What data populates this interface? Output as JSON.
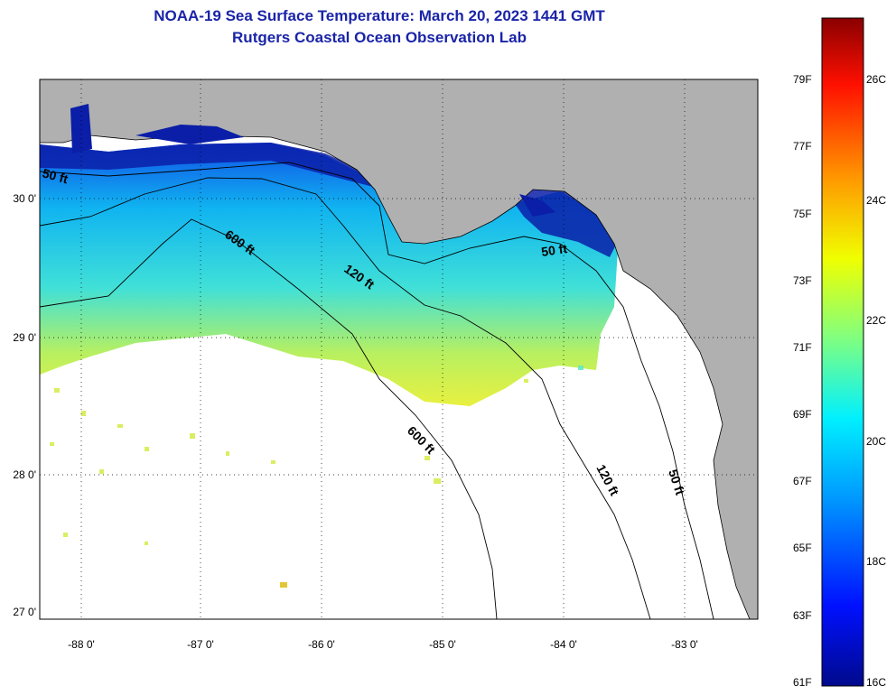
{
  "title_line1": "NOAA-19 Sea Surface Temperature:  March 20, 2023 1441 GMT",
  "title_line2": "Rutgers Coastal Ocean Observation Lab",
  "map": {
    "lat_labels": [
      "30 0'",
      "29 0'",
      "28 0'",
      "27 0'"
    ],
    "lon_labels": [
      "-88 0'",
      "-87 0'",
      "-86 0'",
      "-85 0'",
      "-84 0'",
      "-83 0'"
    ],
    "contour_labels": [
      "50 ft",
      "600 ft",
      "120 ft",
      "50 ft",
      "600 ft",
      "120 ft",
      "50 ft"
    ],
    "colors": {
      "land": "#b0b0b0",
      "ocean_nodata": "#ffffff",
      "contour": "#000000"
    }
  },
  "colorbar": {
    "fahrenheit_labels": [
      "79F",
      "77F",
      "75F",
      "73F",
      "71F",
      "69F",
      "67F",
      "65F",
      "63F",
      "61F"
    ],
    "celsius_labels": [
      "26C",
      "24C",
      "22C",
      "20C",
      "18C",
      "16C"
    ],
    "stops": [
      "#000a8c",
      "#0010ff",
      "#0098ff",
      "#00f0ff",
      "#80ff80",
      "#f0ff00",
      "#ff9800",
      "#ff1000",
      "#8a0000"
    ]
  }
}
